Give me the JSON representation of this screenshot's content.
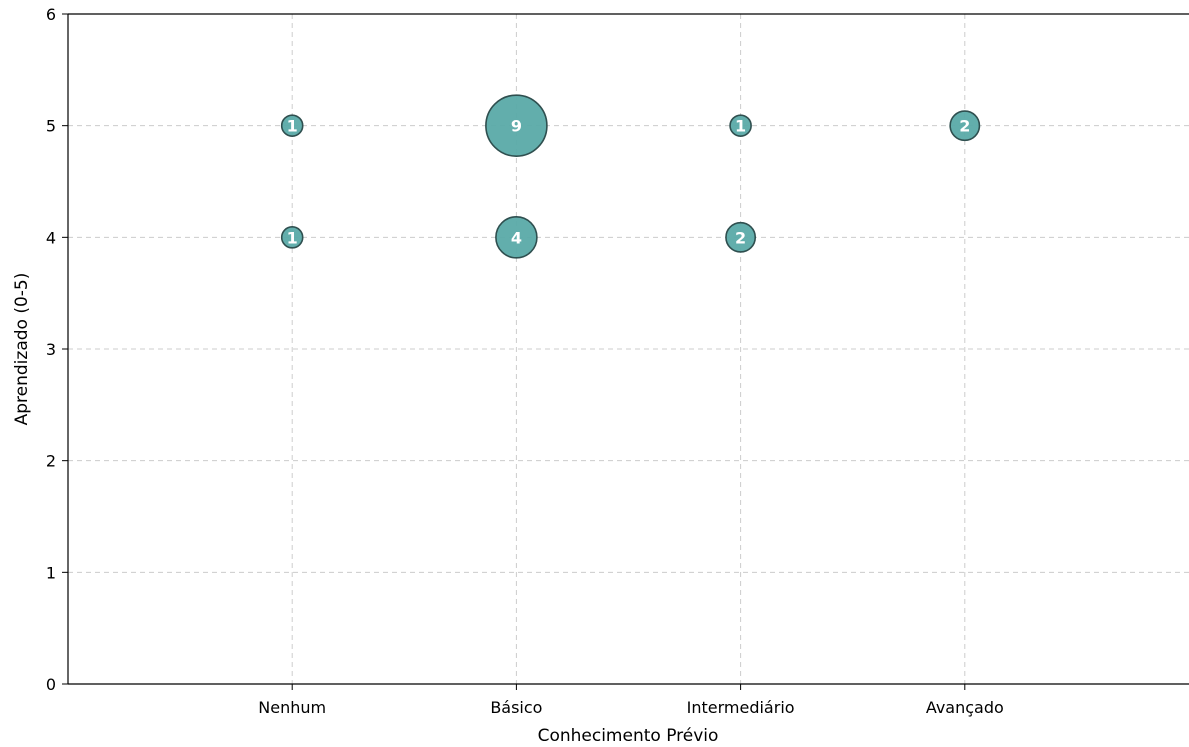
{
  "chart_data": {
    "type": "scatter",
    "title": "",
    "xlabel": "Conhecimento Prévio",
    "ylabel": "Aprendizado (0-5)",
    "categories": [
      "Nenhum",
      "Básico",
      "Intermediário",
      "Avançado"
    ],
    "xlim": [
      -1,
      4
    ],
    "ylim": [
      0,
      6
    ],
    "yticks": [
      "0",
      "1",
      "2",
      "3",
      "4",
      "5",
      "6"
    ],
    "grid": true,
    "legend": "none",
    "bubble_color": "#5aaaa8",
    "edge_color": "#2f4f4f",
    "points": [
      {
        "x": "Nenhum",
        "y": 5,
        "count": 1,
        "label": "1"
      },
      {
        "x": "Nenhum",
        "y": 4,
        "count": 1,
        "label": "1"
      },
      {
        "x": "Básico",
        "y": 5,
        "count": 9,
        "label": "9"
      },
      {
        "x": "Básico",
        "y": 4,
        "count": 4,
        "label": "4"
      },
      {
        "x": "Intermediário",
        "y": 5,
        "count": 1,
        "label": "1"
      },
      {
        "x": "Intermediário",
        "y": 4,
        "count": 2,
        "label": "2"
      },
      {
        "x": "Avançado",
        "y": 5,
        "count": 2,
        "label": "2"
      }
    ]
  }
}
